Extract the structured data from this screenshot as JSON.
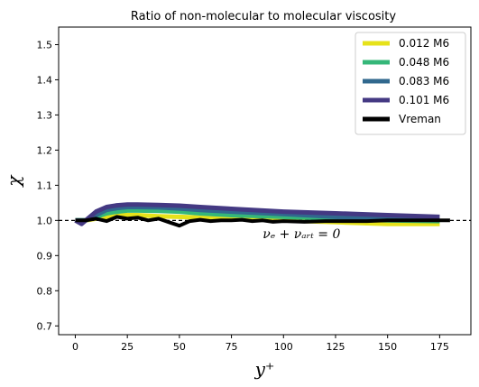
{
  "chart_data": {
    "type": "line",
    "title": "Ratio of non-molecular to molecular viscosity",
    "xlabel": "y⁺",
    "ylabel": "χ",
    "xlim": [
      -8,
      190
    ],
    "ylim": [
      0.675,
      1.55
    ],
    "x_ticks": [
      0,
      25,
      50,
      75,
      100,
      125,
      150,
      175
    ],
    "y_ticks": [
      0.7,
      0.8,
      0.9,
      1.0,
      1.1,
      1.2,
      1.3,
      1.4,
      1.5
    ],
    "y_tick_labels": [
      "0.7",
      "0.8",
      "0.9",
      "1.0",
      "1.1",
      "1.2",
      "1.3",
      "1.4",
      "1.5"
    ],
    "grid": false,
    "legend_position": "top-right",
    "reference_line": {
      "y": 1.0,
      "style": "dashed"
    },
    "annotation": {
      "text": "νₑ + νₐᵣₜ = 0",
      "x": 90,
      "y": 0.96
    },
    "series": [
      {
        "name": "0.012 M6",
        "color": "#e6e21a",
        "x": [
          0,
          5,
          10,
          15,
          20,
          25,
          30,
          40,
          50,
          60,
          75,
          100,
          125,
          150,
          175
        ],
        "y": [
          1.0,
          1.0,
          1.005,
          1.01,
          1.015,
          1.015,
          1.015,
          1.012,
          1.01,
          1.008,
          1.005,
          1.0,
          0.995,
          0.99,
          0.99
        ]
      },
      {
        "name": "0.048 M6",
        "color": "#35b779",
        "x": [
          0,
          5,
          10,
          15,
          20,
          25,
          30,
          40,
          50,
          60,
          75,
          100,
          125,
          150,
          175
        ],
        "y": [
          1.0,
          1.0,
          1.01,
          1.02,
          1.025,
          1.028,
          1.028,
          1.027,
          1.025,
          1.02,
          1.015,
          1.01,
          1.005,
          1.0,
          0.998
        ]
      },
      {
        "name": "0.083 M6",
        "color": "#31688e",
        "x": [
          0,
          5,
          10,
          15,
          20,
          25,
          30,
          40,
          50,
          60,
          75,
          100,
          125,
          150,
          175
        ],
        "y": [
          1.0,
          1.0,
          1.015,
          1.03,
          1.035,
          1.038,
          1.038,
          1.037,
          1.034,
          1.03,
          1.025,
          1.018,
          1.01,
          1.005,
          1.002
        ]
      },
      {
        "name": "0.101 M6",
        "color": "#443983",
        "x": [
          0,
          3,
          5,
          10,
          15,
          20,
          25,
          30,
          40,
          50,
          60,
          75,
          100,
          125,
          150,
          175
        ],
        "y": [
          1.0,
          0.99,
          1.0,
          1.025,
          1.038,
          1.043,
          1.045,
          1.045,
          1.044,
          1.042,
          1.038,
          1.033,
          1.025,
          1.02,
          1.015,
          1.01
        ]
      },
      {
        "name": "Vreman",
        "color": "#000000",
        "x": [
          0,
          5,
          10,
          15,
          20,
          25,
          30,
          35,
          40,
          45,
          50,
          55,
          60,
          65,
          70,
          75,
          80,
          85,
          90,
          95,
          100,
          110,
          120,
          130,
          140,
          150,
          160,
          170,
          180
        ],
        "y": [
          1.0,
          1.0,
          1.005,
          0.998,
          1.01,
          1.005,
          1.008,
          1.0,
          1.005,
          0.995,
          0.985,
          0.998,
          1.002,
          0.998,
          1.0,
          1.0,
          1.002,
          0.998,
          1.0,
          0.996,
          0.998,
          0.996,
          0.998,
          0.998,
          0.998,
          1.0,
          1.0,
          1.0,
          1.0
        ]
      }
    ]
  }
}
